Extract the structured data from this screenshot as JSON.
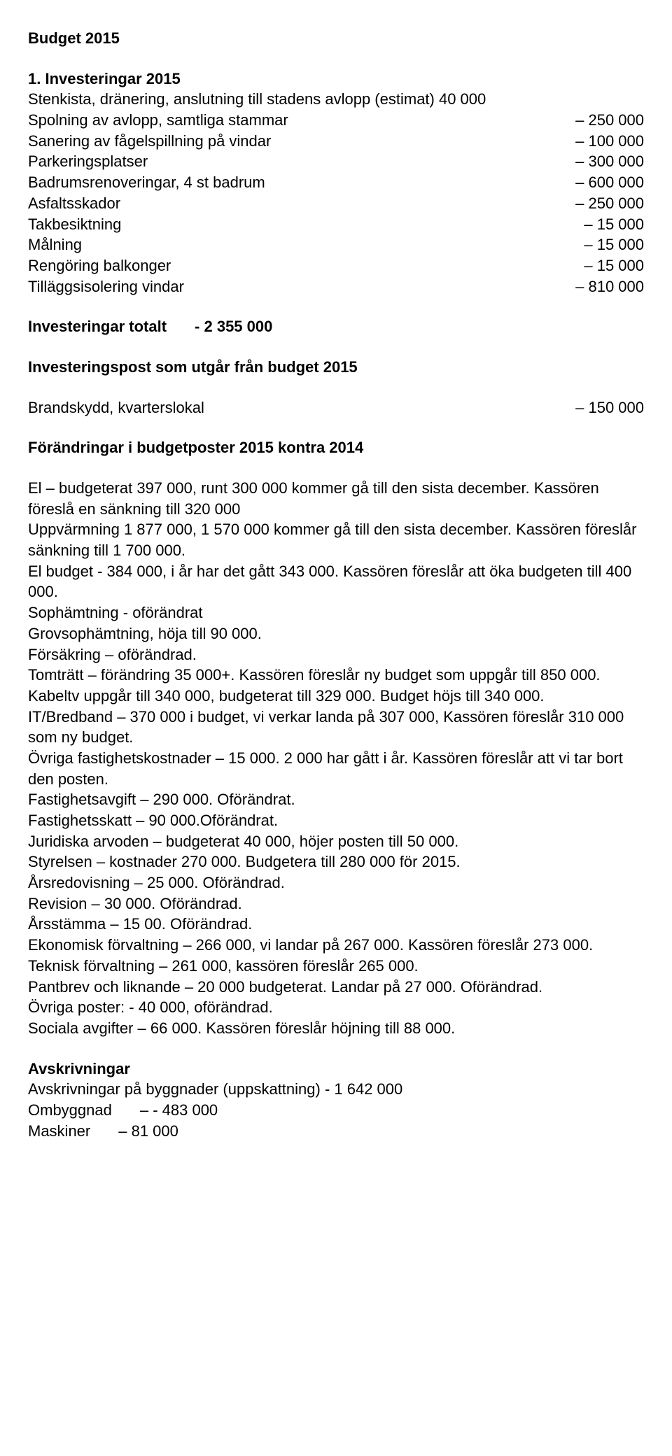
{
  "title": "Budget 2015",
  "heading1": "1. Investeringar 2015",
  "investRows": [
    {
      "label": "Stenkista, dränering, anslutning till stadens avlopp (estimat) 40 000",
      "value": ""
    },
    {
      "label": "Spolning av avlopp, samtliga stammar",
      "value": "– 250 000"
    },
    {
      "label": "Sanering av fågelspillning på vindar",
      "value": "– 100 000"
    },
    {
      "label": "Parkeringsplatser",
      "value": "– 300 000"
    },
    {
      "label": "Badrumsrenoveringar, 4 st badrum",
      "value": "– 600 000"
    },
    {
      "label": "Asfaltsskador",
      "value": "– 250 000"
    },
    {
      "label": "Takbesiktning",
      "value": "– 15 000"
    },
    {
      "label": "Målning",
      "value": "– 15 000"
    },
    {
      "label": "Rengöring balkonger",
      "value": "– 15 000"
    },
    {
      "label": "Tilläggsisolering vindar",
      "value": "– 810 000"
    }
  ],
  "investTotal": {
    "label": "Investeringar totalt",
    "value": "- 2 355 000"
  },
  "postHeading": "Investeringspost som utgår från budget 2015",
  "postRow": {
    "label": "Brandskydd, kvarterslokal",
    "value": "– 150 000"
  },
  "changesHeading": "Förändringar i budgetposter 2015 kontra 2014",
  "body": [
    "El – budgeterat 397 000, runt 300 000 kommer gå till den sista december. Kassören föreslå en sänkning till 320 000",
    "Uppvärmning 1 877 000, 1 570 000 kommer gå till den sista december. Kassören föreslår sänkning till 1 700 000.",
    "El budget - 384 000, i år har det gått 343 000. Kassören föreslår att öka budgeten till 400 000.",
    "Sophämtning - oförändrat",
    "Grovsophämtning, höja till 90 000.",
    "Försäkring – oförändrad.",
    "Tomträtt – förändring 35 000+. Kassören föreslår ny budget som uppgår till 850 000.",
    "Kabeltv uppgår till 340 000, budgeterat till 329 000. Budget höjs till 340 000.",
    "IT/Bredband – 370 000 i budget, vi verkar landa på 307 000, Kassören föreslår 310 000 som ny budget.",
    "Övriga fastighetskostnader – 15 000. 2 000 har gått i år. Kassören föreslår att vi tar bort den posten.",
    "Fastighetsavgift – 290 000. Oförändrat.",
    "Fastighetsskatt – 90 000.Oförändrat.",
    "Juridiska arvoden – budgeterat 40 000, höjer posten till 50 000.",
    "Styrelsen – kostnader 270 000. Budgetera till 280 000 för 2015.",
    "Årsredovisning – 25 000. Oförändrad.",
    "Revision – 30 000. Oförändrad.",
    "Årsstämma – 15 00. Oförändrad.",
    "Ekonomisk förvaltning – 266 000, vi landar på 267 000. Kassören föreslår 273 000.",
    "Teknisk förvaltning – 261 000, kassören föreslår 265 000.",
    "Pantbrev och liknande – 20 000 budgeterat. Landar på 27 000. Oförändrad.",
    "Övriga poster: - 40 000, oförändrad.",
    "Sociala avgifter – 66 000. Kassören föreslår höjning till 88 000."
  ],
  "avskHeading": "Avskrivningar",
  "avskRows": [
    {
      "label": "Avskrivningar på byggnader  (uppskattning) - 1 642 000",
      "value": ""
    },
    {
      "label": "Ombyggnad",
      "value": "– - 483 000"
    },
    {
      "label": "Maskiner",
      "value": "– 81 000"
    }
  ]
}
